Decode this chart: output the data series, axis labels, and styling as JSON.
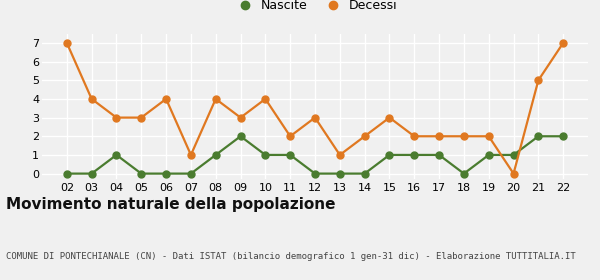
{
  "years": [
    "02",
    "03",
    "04",
    "05",
    "06",
    "07",
    "08",
    "09",
    "10",
    "11",
    "12",
    "13",
    "14",
    "15",
    "16",
    "17",
    "18",
    "19",
    "20",
    "21",
    "22"
  ],
  "nascite": [
    0,
    0,
    1,
    0,
    0,
    0,
    1,
    2,
    1,
    1,
    0,
    0,
    0,
    1,
    1,
    1,
    0,
    1,
    1,
    2,
    2
  ],
  "decessi": [
    7,
    4,
    3,
    3,
    4,
    1,
    4,
    3,
    4,
    2,
    3,
    1,
    2,
    3,
    2,
    2,
    2,
    2,
    0,
    5,
    7
  ],
  "nascite_color": "#4a7c2f",
  "decessi_color": "#e07820",
  "title": "Movimento naturale della popolazione",
  "subtitle": "COMUNE DI PONTECHIANALE (CN) - Dati ISTAT (bilancio demografico 1 gen-31 dic) - Elaborazione TUTTITALIA.IT",
  "legend_nascite": "Nascite",
  "legend_decessi": "Decessi",
  "ylim": [
    -0.3,
    7.5
  ],
  "bg_color": "#f0f0f0",
  "grid_color": "#ffffff",
  "marker_size": 5,
  "line_width": 1.6,
  "title_fontsize": 11,
  "subtitle_fontsize": 6.5,
  "tick_fontsize": 8,
  "legend_fontsize": 9
}
